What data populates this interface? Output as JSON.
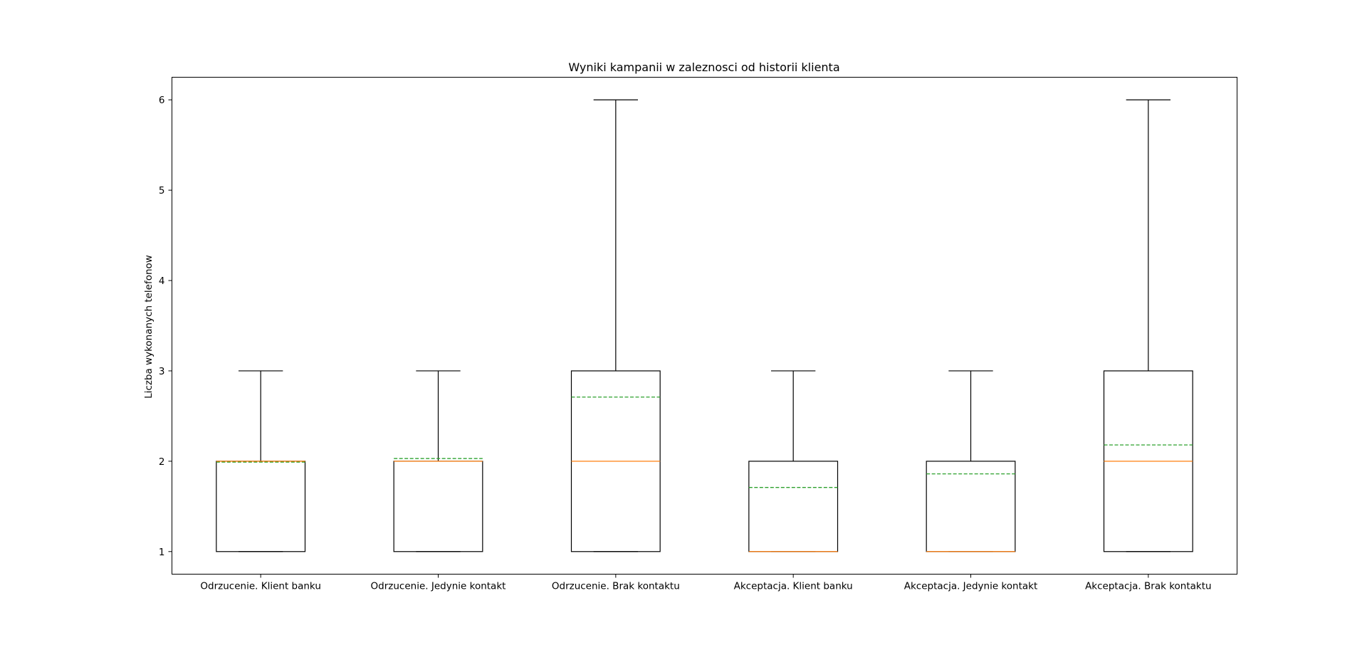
{
  "chart_data": {
    "type": "boxplot",
    "title": "Wyniki kampanii w zaleznosci od historii klienta",
    "xlabel": "",
    "ylabel": "Liczba wykonanych telefonow",
    "ylim": [
      0.75,
      6.25
    ],
    "yticks": [
      1,
      2,
      3,
      4,
      5,
      6
    ],
    "grid": false,
    "legend": "none",
    "categories": [
      "Odrzucenie. Klient banku",
      "Odrzucenie. Jedynie kontakt",
      "Odrzucenie. Brak kontaktu",
      "Akceptacja. Klient banku",
      "Akceptacja. Jedynie kontakt",
      "Akceptacja. Brak kontaktu"
    ],
    "boxes": [
      {
        "whisker_low": 1,
        "q1": 1,
        "median": 2,
        "q3": 2,
        "whisker_high": 3,
        "mean": 1.99
      },
      {
        "whisker_low": 1,
        "q1": 1,
        "median": 2,
        "q3": 2,
        "whisker_high": 3,
        "mean": 2.03
      },
      {
        "whisker_low": 1,
        "q1": 1,
        "median": 2,
        "q3": 3,
        "whisker_high": 6,
        "mean": 2.71
      },
      {
        "whisker_low": 1,
        "q1": 1,
        "median": 1,
        "q3": 2,
        "whisker_high": 3,
        "mean": 1.71
      },
      {
        "whisker_low": 1,
        "q1": 1,
        "median": 1,
        "q3": 2,
        "whisker_high": 3,
        "mean": 1.86
      },
      {
        "whisker_low": 1,
        "q1": 1,
        "median": 2,
        "q3": 3,
        "whisker_high": 6,
        "mean": 2.18
      }
    ],
    "colors": {
      "box": "#000000",
      "median": "#ff7f0e",
      "mean": "#2ca02c"
    }
  }
}
